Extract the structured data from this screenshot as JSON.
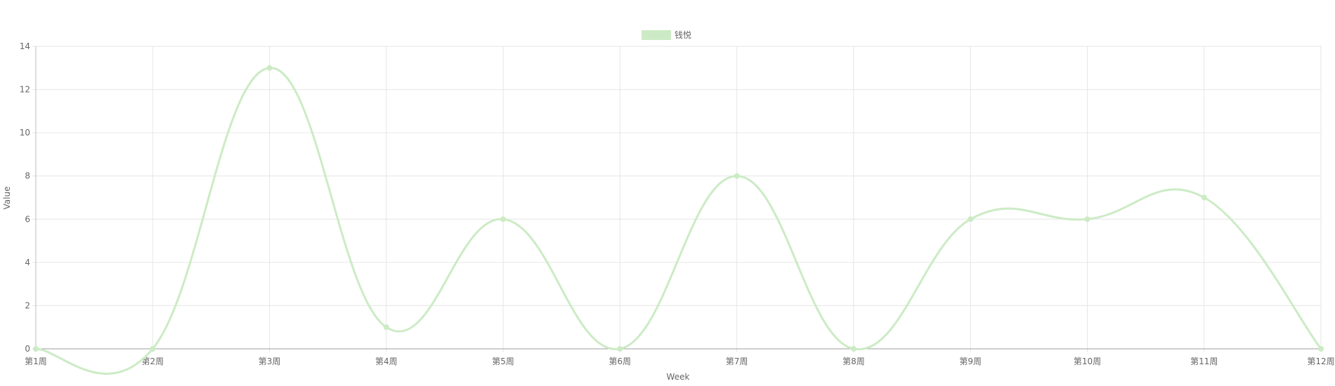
{
  "chart_data": {
    "type": "line",
    "title": "",
    "xlabel": "Week",
    "ylabel": "Value",
    "categories": [
      "第1周",
      "第2周",
      "第3周",
      "第4周",
      "第5周",
      "第6周",
      "第7周",
      "第8周",
      "第9周",
      "第10周",
      "第11周",
      "第12周"
    ],
    "ylim": [
      0,
      14
    ],
    "yticks": [
      0,
      2,
      4,
      6,
      8,
      10,
      12,
      14
    ],
    "grid": true,
    "legend_position": "top-center",
    "series": [
      {
        "name": "钱悦",
        "color": "#ccebc5",
        "values": [
          0,
          0,
          13,
          1,
          6,
          0,
          8,
          0,
          6,
          6,
          7,
          0
        ]
      }
    ]
  }
}
